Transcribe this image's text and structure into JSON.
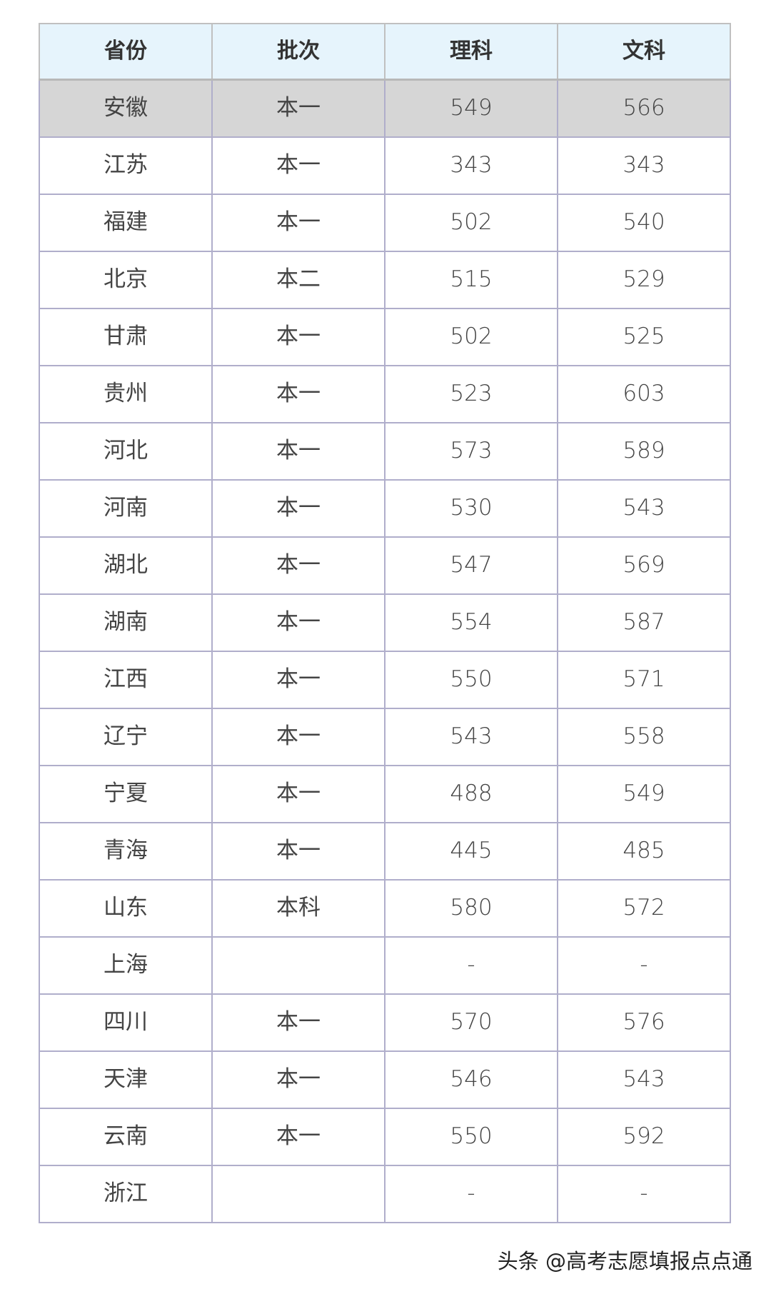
{
  "table": {
    "headers": [
      "省份",
      "批次",
      "理科",
      "文科"
    ],
    "rows": [
      [
        "安徽",
        "本一",
        "549",
        "566"
      ],
      [
        "江苏",
        "本一",
        "343",
        "343"
      ],
      [
        "福建",
        "本一",
        "502",
        "540"
      ],
      [
        "北京",
        "本二",
        "515",
        "529"
      ],
      [
        "甘肃",
        "本一",
        "502",
        "525"
      ],
      [
        "贵州",
        "本一",
        "523",
        "603"
      ],
      [
        "河北",
        "本一",
        "573",
        "589"
      ],
      [
        "河南",
        "本一",
        "530",
        "543"
      ],
      [
        "湖北",
        "本一",
        "547",
        "569"
      ],
      [
        "湖南",
        "本一",
        "554",
        "587"
      ],
      [
        "江西",
        "本一",
        "550",
        "571"
      ],
      [
        "辽宁",
        "本一",
        "543",
        "558"
      ],
      [
        "宁夏",
        "本一",
        "488",
        "549"
      ],
      [
        "青海",
        "本一",
        "445",
        "485"
      ],
      [
        "山东",
        "本科",
        "580",
        "572"
      ],
      [
        "上海",
        "",
        "-",
        "-"
      ],
      [
        "四川",
        "本一",
        "570",
        "576"
      ],
      [
        "天津",
        "本一",
        "546",
        "543"
      ],
      [
        "云南",
        "本一",
        "550",
        "592"
      ],
      [
        "浙江",
        "",
        "-",
        "-"
      ]
    ],
    "highlighted_row": 0
  },
  "watermark": "头条 @高考志愿填报点点通"
}
